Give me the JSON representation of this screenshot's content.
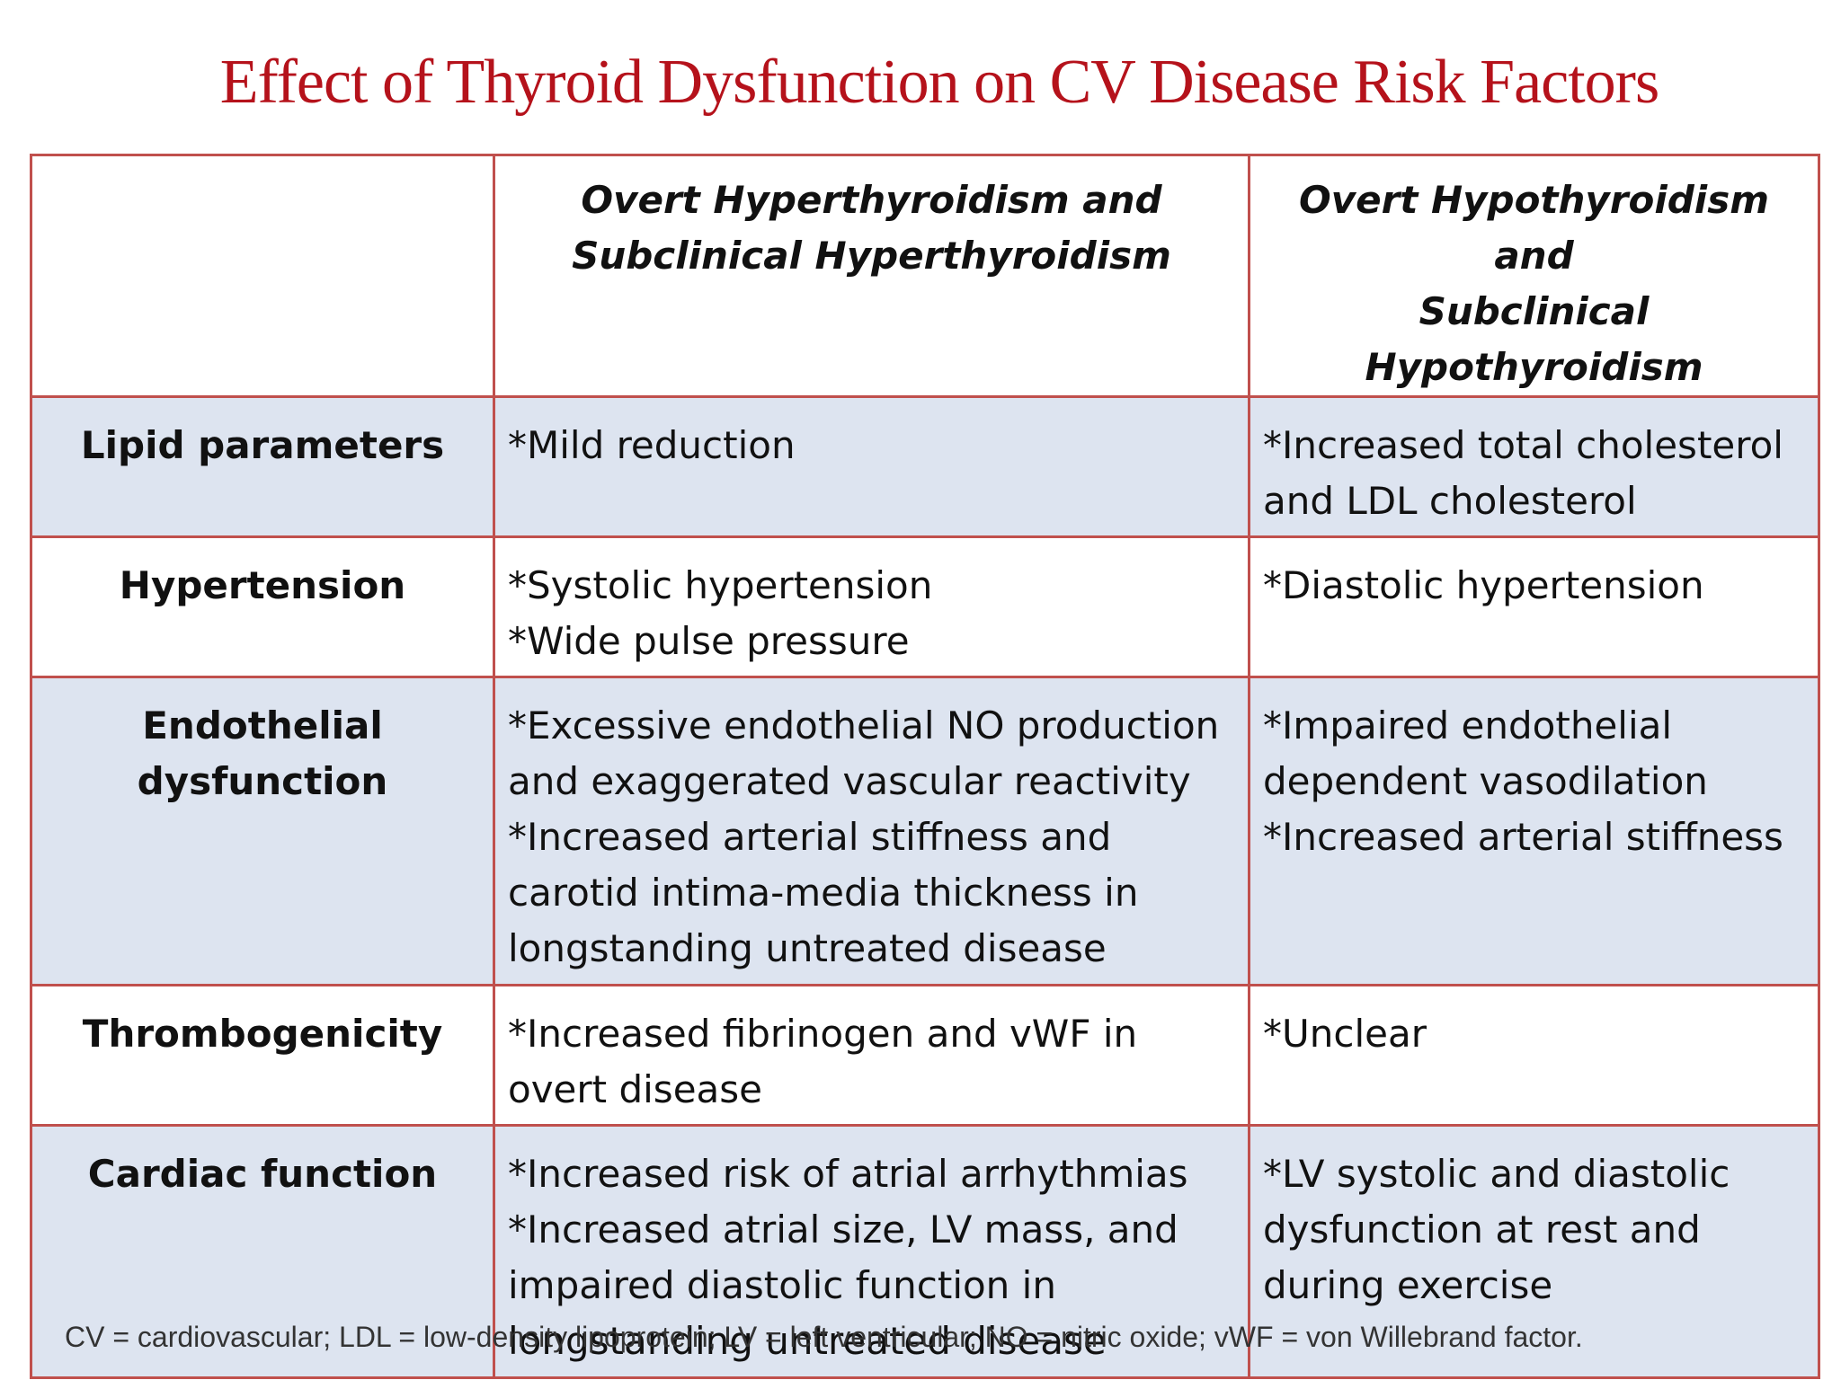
{
  "title": "Effect of Thyroid Dysfunction on CV Disease Risk Factors",
  "table": {
    "headers": [
      "",
      [
        "Overt Hyperthyroidism and",
        "Subclinical Hyperthyroidism"
      ],
      [
        "Overt Hypothyroidism and",
        "Subclinical Hypothyroidism"
      ]
    ],
    "rows": [
      {
        "label": [
          "Lipid parameters"
        ],
        "hyper": [
          "*Mild reduction"
        ],
        "hypo": [
          "*Increased total cholesterol",
          "and LDL cholesterol"
        ]
      },
      {
        "label": [
          "Hypertension"
        ],
        "hyper": [
          "*Systolic hypertension",
          "*Wide pulse pressure"
        ],
        "hypo": [
          "*Diastolic hypertension"
        ]
      },
      {
        "label": [
          "Endothelial",
          "dysfunction"
        ],
        "hyper": [
          "*Excessive endothelial NO production",
          "and exaggerated vascular reactivity",
          "*Increased arterial stiffness and",
          "carotid intima-media thickness in",
          "longstanding untreated disease"
        ],
        "hypo": [
          "*Impaired endothelial",
          "dependent vasodilation",
          "*Increased arterial stiffness"
        ]
      },
      {
        "label": [
          "Thrombogenicity"
        ],
        "hyper": [
          "*Increased fibrinogen and vWF in",
          "overt disease"
        ],
        "hypo": [
          "*Unclear"
        ]
      },
      {
        "label": [
          "Cardiac function"
        ],
        "hyper": [
          "*Increased risk of atrial arrhythmias",
          "*Increased atrial size, LV mass, and",
          "impaired diastolic function in",
          "longstanding untreated disease"
        ],
        "hypo": [
          "*LV systolic and diastolic",
          "dysfunction at rest and",
          "during exercise"
        ]
      }
    ]
  },
  "footnote": "CV = cardiovascular; LDL = low-density lipoprotein; LV = left ventricular; NO = nitric oxide; vWF = von Willebrand factor.",
  "colors": {
    "title": "#b5121b",
    "border": "#c0504d",
    "shade": "#dde4f0"
  }
}
